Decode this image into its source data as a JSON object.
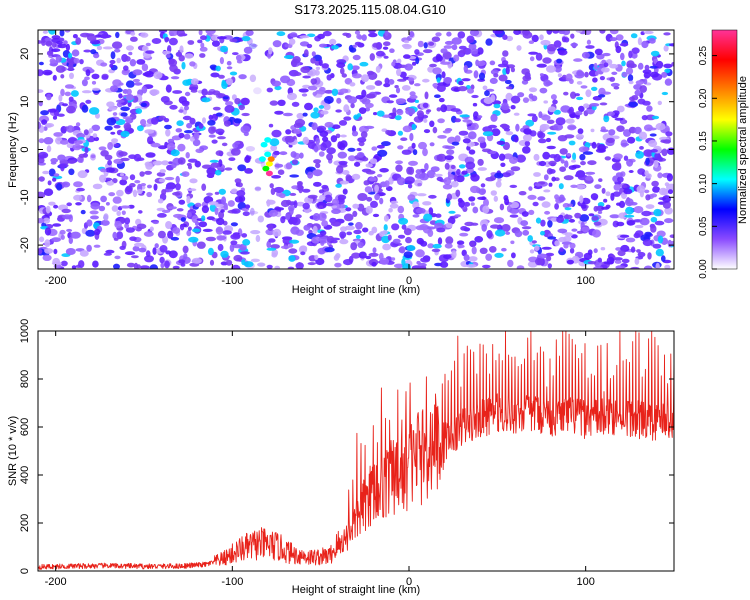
{
  "title": "S173.2025.115.08.04.G10",
  "chart_data": [
    {
      "type": "heatmap",
      "xlabel": "Height of straight line (km)",
      "ylabel": "Frequency (Hz)",
      "xlim": [
        -210,
        150
      ],
      "ylim": [
        -25,
        25
      ],
      "x_ticks": [
        -200,
        -100,
        0,
        100
      ],
      "y_ticks": [
        -20,
        -10,
        0,
        10,
        20
      ],
      "colorbar": {
        "label": "Normalized spectral amplitude",
        "range": [
          0,
          0.28
        ],
        "ticks": [
          0.0,
          0.05,
          0.1,
          0.15,
          0.2,
          0.25
        ],
        "colors": [
          "#ffffff",
          "#8a4bff",
          "#0000ff",
          "#00ffff",
          "#00ff00",
          "#ffff00",
          "#ff8000",
          "#ff0000",
          "#ff3399"
        ]
      },
      "features": {
        "vertical_pale_band_x": [
          -90,
          -80
        ],
        "hotspot": {
          "x": -80,
          "y_range": [
            -6,
            2
          ],
          "max_amplitude": 0.27
        }
      }
    },
    {
      "type": "line",
      "xlabel": "Height of straight line (km)",
      "ylabel": "SNR (10 * v/v)",
      "xlim": [
        -210,
        150
      ],
      "ylim": [
        0,
        1000
      ],
      "x_ticks": [
        -200,
        -100,
        0,
        100
      ],
      "y_ticks": [
        0,
        200,
        400,
        600,
        800,
        1000
      ],
      "color": "#e8221a",
      "series": [
        {
          "x": [
            -210,
            -190,
            -170,
            -150,
            -130,
            -115,
            -105,
            -95,
            -85,
            -75,
            -65,
            -55,
            -45,
            -35,
            -28,
            -20,
            -12,
            -5,
            0,
            10,
            20,
            30,
            40,
            50,
            60,
            70,
            80,
            90,
            100,
            110,
            120,
            130,
            140,
            150
          ],
          "values": [
            15,
            18,
            20,
            17,
            18,
            25,
            45,
            80,
            100,
            90,
            60,
            50,
            55,
            140,
            230,
            320,
            360,
            380,
            420,
            480,
            540,
            600,
            630,
            660,
            650,
            660,
            640,
            650,
            630,
            640,
            650,
            630,
            620,
            630
          ]
        }
      ]
    }
  ]
}
